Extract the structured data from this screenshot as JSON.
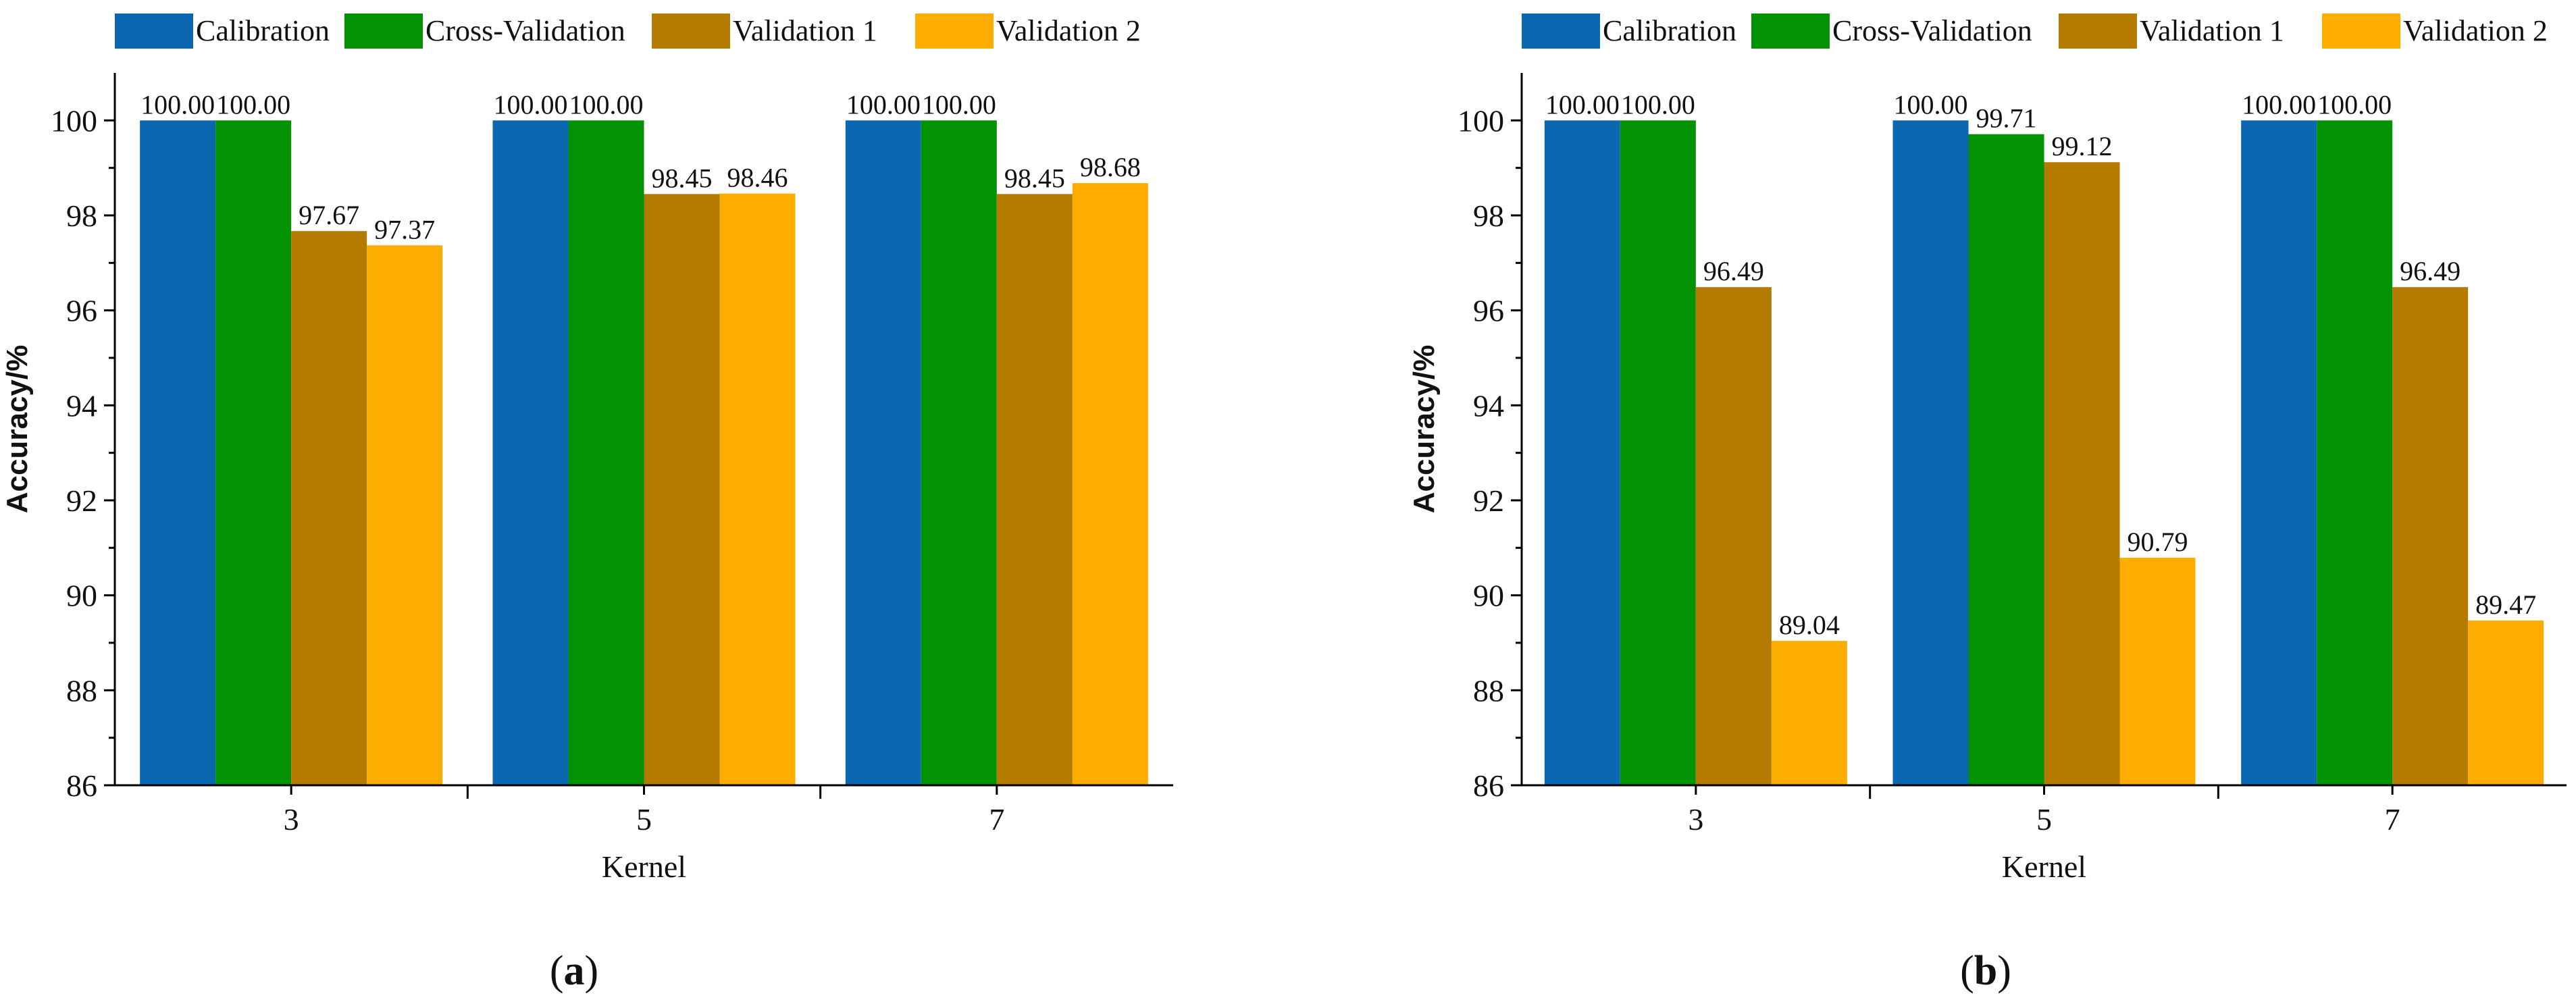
{
  "chart_data": [
    {
      "type": "bar",
      "panel_label": "a",
      "categories": [
        "3",
        "5",
        "7"
      ],
      "series": [
        {
          "name": "Calibration",
          "color": "#0a67b0",
          "values": [
            100.0,
            100.0,
            100.0
          ],
          "labels": [
            "100.00",
            "100.00",
            "100.00"
          ]
        },
        {
          "name": "Cross-Validation",
          "color": "#039203",
          "values": [
            100.0,
            100.0,
            100.0
          ],
          "labels": [
            "100.00",
            "100.00",
            "100.00"
          ]
        },
        {
          "name": "Validation 1",
          "color": "#b47b00",
          "values": [
            97.67,
            98.45,
            98.45
          ],
          "labels": [
            "97.67",
            "98.45",
            "98.45"
          ]
        },
        {
          "name": "Validation 2",
          "color": "#fdac00",
          "values": [
            97.37,
            98.46,
            98.68
          ],
          "labels": [
            "97.37",
            "98.46",
            "98.68"
          ]
        }
      ],
      "xlabel": "Kernel",
      "ylabel": "Accuracy/%",
      "ylim": [
        86,
        101
      ],
      "yticks": [
        86,
        88,
        90,
        92,
        94,
        96,
        98,
        100
      ],
      "legend_position": "top"
    },
    {
      "type": "bar",
      "panel_label": "b",
      "categories": [
        "3",
        "5",
        "7"
      ],
      "series": [
        {
          "name": "Calibration",
          "color": "#0a67b0",
          "values": [
            100.0,
            100.0,
            100.0
          ],
          "labels": [
            "100.00",
            "100.00",
            "100.00"
          ]
        },
        {
          "name": "Cross-Validation",
          "color": "#039203",
          "values": [
            100.0,
            99.71,
            100.0
          ],
          "labels": [
            "100.00",
            "99.71",
            "100.00"
          ]
        },
        {
          "name": "Validation 1",
          "color": "#b47b00",
          "values": [
            96.49,
            99.12,
            96.49
          ],
          "labels": [
            "96.49",
            "99.12",
            "96.49"
          ]
        },
        {
          "name": "Validation 2",
          "color": "#fdac00",
          "values": [
            89.04,
            90.79,
            89.47
          ],
          "labels": [
            "89.04",
            "90.79",
            "89.47"
          ]
        }
      ],
      "xlabel": "Kernel",
      "ylabel": "Accuracy/%",
      "ylim": [
        86,
        101
      ],
      "yticks": [
        86,
        88,
        90,
        92,
        94,
        96,
        98,
        100
      ],
      "legend_position": "top"
    }
  ]
}
